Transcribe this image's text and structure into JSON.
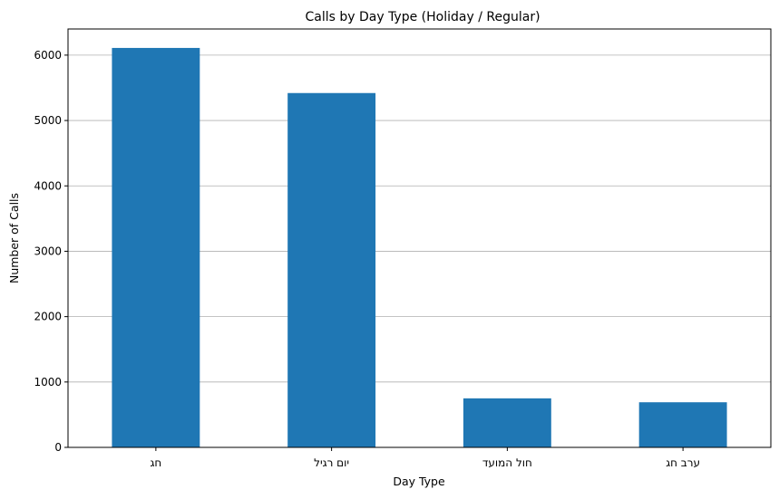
{
  "chart_data": {
    "type": "bar",
    "title": "Calls by Day Type (Holiday / Regular)",
    "xlabel": "Day Type",
    "ylabel": "Number of Calls",
    "categories": [
      "חג",
      "יום רגיל",
      "חול המועד",
      "ערב חג"
    ],
    "values": [
      6110,
      5420,
      750,
      690
    ],
    "ylim": [
      0,
      6400
    ],
    "yticks": [
      0,
      1000,
      2000,
      3000,
      4000,
      5000,
      6000
    ],
    "grid": "horizontal",
    "bar_color": "#1f77b4",
    "legend": "none"
  }
}
